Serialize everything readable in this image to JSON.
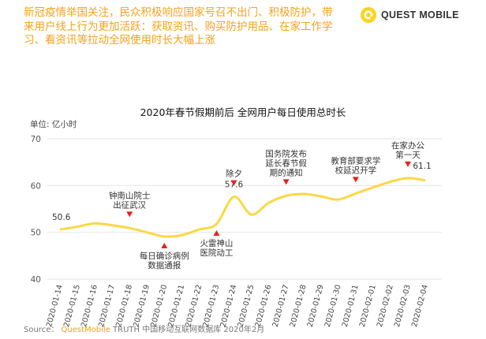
{
  "headline": "新冠疫情举国关注，民众积极响应国家号召不出门、积极防护，带来用户线上行为更加活跃：获取资讯、购买防护用品、在家工作学习、看资讯等拉动全网使用时长大幅上涨",
  "logo": {
    "text": "QUEST MOBILE"
  },
  "source": {
    "label": "Source：",
    "brand": "QuestMobile",
    "rest": "TRUTH 中国移动互联网数据库 2020年2月"
  },
  "colors": {
    "accent": "#f5a623",
    "line": "#fbd845",
    "marker": "#e8201e",
    "grid": "#e6e6e6"
  },
  "chart_data": {
    "type": "line",
    "title": "2020年春节假期前后 全网用户每日使用总时长",
    "ylabel": "单位: 亿小时",
    "ylim": [
      40,
      70
    ],
    "yticks": [
      40,
      50,
      60,
      70
    ],
    "grid": true,
    "categories": [
      "2020-01-14",
      "2020-01-15",
      "2020-01-16",
      "2020-01-17",
      "2020-01-18",
      "2020-01-19",
      "2020-01-20",
      "2020-01-21",
      "2020-01-22",
      "2020-01-23",
      "2020-01-24",
      "2020-01-25",
      "2020-01-26",
      "2020-01-27",
      "2020-01-28",
      "2020-01-29",
      "2020-01-30",
      "2020-01-31",
      "2020-02-01",
      "2020-02-02",
      "2020-02-03",
      "2020-02-04"
    ],
    "values": [
      50.6,
      51.2,
      51.9,
      51.5,
      50.9,
      50.0,
      49.1,
      49.4,
      50.6,
      51.8,
      57.6,
      53.8,
      56.3,
      57.8,
      58.2,
      57.7,
      57.0,
      58.3,
      59.6,
      60.8,
      61.6,
      61.1
    ],
    "data_labels": [
      {
        "index": 0,
        "text": "50.6"
      },
      {
        "index": 10,
        "text": "57.6"
      },
      {
        "index": 21,
        "text": "61.1"
      }
    ],
    "annotations": [
      {
        "index": 4,
        "lines": [
          "钟南山院士",
          "出征武汉"
        ],
        "side": "above"
      },
      {
        "index": 6,
        "lines": [
          "每日确诊病例",
          "数据通报"
        ],
        "side": "below"
      },
      {
        "index": 9,
        "lines": [
          "火雷神山",
          "医院动工"
        ],
        "side": "below"
      },
      {
        "index": 10,
        "lines": [
          "除夕"
        ],
        "side": "above"
      },
      {
        "index": 13,
        "lines": [
          "国务院发布",
          "延长春节假",
          "期的通知"
        ],
        "side": "above"
      },
      {
        "index": 17,
        "lines": [
          "教育部要求学",
          "校延迟开学"
        ],
        "side": "above"
      },
      {
        "index": 20,
        "lines": [
          "在家办公",
          "第一天"
        ],
        "side": "above"
      }
    ]
  }
}
